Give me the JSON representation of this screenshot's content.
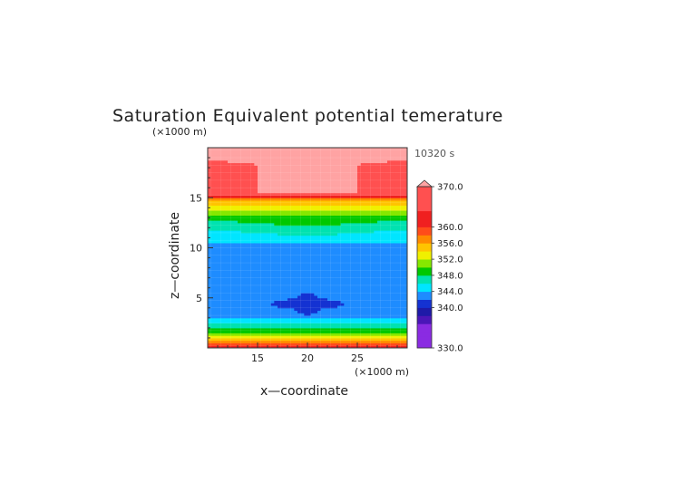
{
  "chart_data": {
    "type": "heatmap",
    "title": "Saturation Equivalent potential temerature",
    "time_label": "10320 s",
    "xlabel": "x—coordinate",
    "ylabel": "z—coordinate",
    "x_unit": "(×1000 m)",
    "y_unit": "(×1000 m)",
    "xlim": [
      10,
      30
    ],
    "ylim": [
      0,
      20
    ],
    "x_ticks": [
      15,
      20,
      25
    ],
    "y_ticks": [
      5,
      10,
      15
    ],
    "colorbar": {
      "tick_labels": [
        "370.0",
        "360.0",
        "356.0",
        "352.0",
        "348.0",
        "344.0",
        "340.0",
        "330.0"
      ],
      "tick_values": [
        370,
        360,
        356,
        352,
        348,
        344,
        340,
        330
      ],
      "range": [
        330,
        370
      ]
    },
    "profile": {
      "z": [
        0.0,
        0.4,
        0.8,
        1.0,
        1.3,
        1.6,
        1.9,
        2.2,
        2.5,
        2.8,
        3.1,
        3.5,
        4.0,
        4.5,
        5.0,
        6.0,
        7.0,
        8.0,
        9.0,
        10.0,
        10.5,
        11.0,
        11.5,
        12.0,
        12.5,
        13.0,
        13.5,
        14.0,
        14.5,
        14.8,
        15.0,
        15.2,
        15.5,
        20.0
      ],
      "theta": [
        361,
        359,
        356,
        354,
        352,
        350,
        348,
        347,
        346,
        345,
        344,
        343,
        343,
        343,
        343,
        343,
        343,
        343,
        343,
        343,
        344,
        345,
        346,
        347,
        348,
        349,
        351,
        353,
        355,
        357,
        359,
        361,
        370,
        370
      ]
    },
    "anomaly": {
      "center": [
        20,
        4.4
      ],
      "rx": [
        3.5,
        1.2
      ],
      "rz": [
        0.55,
        1.2
      ],
      "delta": -2.8
    }
  }
}
